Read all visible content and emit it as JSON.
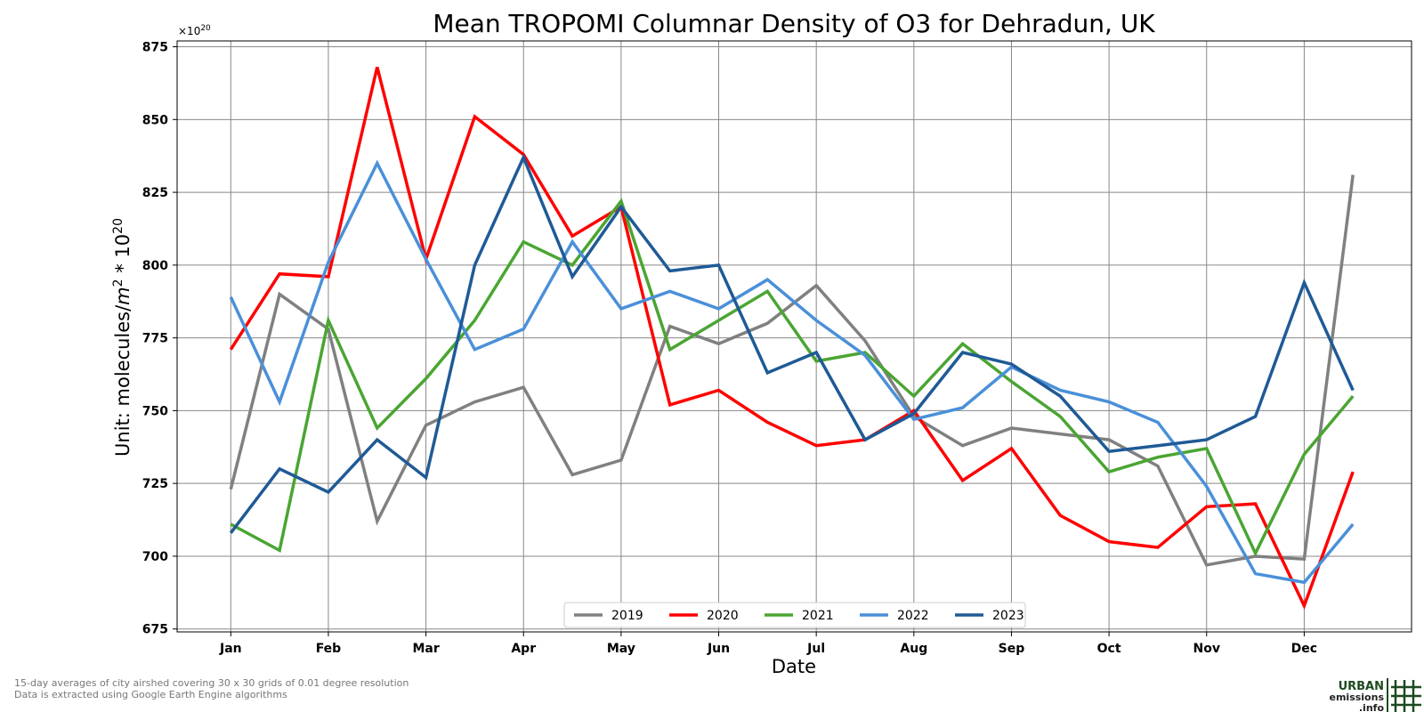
{
  "chart_data": {
    "type": "line",
    "title": "Mean TROPOMI Columnar Density of O3 for Dehradun, UK",
    "xlabel": "Date",
    "ylabel_prefix": "Unit: molecules/",
    "ylabel_m": "m",
    "ylabel_exp": "2",
    "ylabel_mid": " * 10",
    "ylabel_exp2": "20",
    "offset_base": "×10",
    "offset_exp": "20",
    "ylim": [
      674,
      877
    ],
    "xlim": [
      -0.55,
      12.1
    ],
    "yticks": [
      675,
      700,
      725,
      750,
      775,
      800,
      825,
      850,
      875
    ],
    "month_ticks": [
      "Jan",
      "Feb",
      "Mar",
      "Apr",
      "May",
      "Jun",
      "Jul",
      "Aug",
      "Sep",
      "Oct",
      "Nov",
      "Dec"
    ],
    "x": [
      0,
      0.5,
      1,
      1.5,
      2,
      2.5,
      3,
      3.5,
      4,
      4.5,
      5,
      5.5,
      6,
      6.5,
      7,
      7.5,
      8,
      8.5,
      9,
      9.5,
      10,
      10.5,
      11,
      11.5
    ],
    "grid": true,
    "legend_position": "bottom-center",
    "series": [
      {
        "name": "2019",
        "color": "#808080",
        "values": [
          723,
          790,
          778,
          712,
          745,
          753,
          758,
          728,
          733,
          779,
          773,
          780,
          793,
          774,
          748,
          738,
          744,
          742,
          740,
          731,
          697,
          700,
          699,
          831
        ]
      },
      {
        "name": "2020",
        "color": "#ff0000",
        "values": [
          771,
          797,
          796,
          868,
          802,
          851,
          838,
          810,
          820,
          752,
          757,
          746,
          738,
          740,
          750,
          726,
          737,
          714,
          705,
          703,
          717,
          718,
          683,
          729
        ]
      },
      {
        "name": "2021",
        "color": "#4aa532",
        "values": [
          711,
          702,
          781,
          744,
          761,
          781,
          808,
          800,
          822,
          771,
          781,
          791,
          767,
          770,
          755,
          773,
          760,
          748,
          729,
          734,
          737,
          701,
          735,
          755
        ]
      },
      {
        "name": "2022",
        "color": "#4a90d9",
        "values": [
          789,
          753,
          801,
          835,
          802,
          771,
          778,
          808,
          785,
          791,
          785,
          795,
          781,
          769,
          747,
          751,
          765,
          757,
          753,
          746,
          724,
          694,
          691,
          711
        ]
      },
      {
        "name": "2023",
        "color": "#1f5a96",
        "values": [
          708,
          730,
          722,
          740,
          727,
          800,
          837,
          796,
          820,
          798,
          800,
          763,
          770,
          740,
          749,
          770,
          766,
          755,
          736,
          738,
          740,
          748,
          794,
          757
        ]
      }
    ]
  },
  "footnote": {
    "line1": "15-day averages of city airshed covering 30 x 30 grids of 0.01 degree resolution",
    "line2": "Data is extracted using Google Earth Engine algorithms"
  },
  "logo": {
    "line1": "URBAN",
    "line2": "emissions",
    "line3": ".info"
  }
}
